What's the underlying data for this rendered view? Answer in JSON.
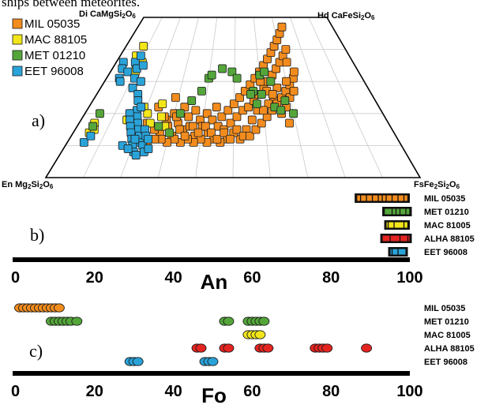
{
  "caption_fragment": "ships between meteorites.",
  "colors": {
    "MIL 05035": "#f28c1e",
    "MAC 88105": "#f2e61a",
    "MET 01210": "#54a63a",
    "EET 96008": "#2aa3d9",
    "ALHA 88105": "#e52420",
    "MAC 81005": "#f2e61a"
  },
  "chart_data": [
    {
      "panel": "a)",
      "type": "scatter",
      "subtype": "ternary pyroxene quadrilateral",
      "vertices": {
        "top_left": "Di CaMgSi2O6",
        "top_right": "Hd CaFeSi2O6",
        "bottom_left": "En Mg2Si2O6",
        "bottom_right": "FsFe2Si2O6"
      },
      "coordinates_note": "Wo: 0 at the base, 50 at the top edge; Fs: 0 at the En side, 100 at the Fs corner",
      "legend_position": "top-left",
      "series": [
        {
          "name": "MIL 05035",
          "points": [
            [
              22,
              17
            ],
            [
              24,
              22
            ],
            [
              27,
              14
            ],
            [
              28,
              18
            ],
            [
              29,
              25
            ],
            [
              30,
              20
            ],
            [
              31,
              13
            ],
            [
              32,
              17
            ],
            [
              33,
              22
            ],
            [
              34,
              15
            ],
            [
              35,
              19
            ],
            [
              36,
              16
            ],
            [
              37,
              21
            ],
            [
              38,
              13
            ],
            [
              39,
              18
            ],
            [
              40,
              16
            ],
            [
              41,
              20
            ],
            [
              42,
              14
            ],
            [
              43,
              18
            ],
            [
              44,
              22
            ],
            [
              45,
              16
            ],
            [
              46,
              19
            ],
            [
              47,
              15
            ],
            [
              48,
              21
            ],
            [
              49,
              17
            ],
            [
              50,
              23
            ],
            [
              51,
              19
            ],
            [
              52,
              25
            ],
            [
              53,
              21
            ],
            [
              54,
              27
            ],
            [
              55,
              22
            ],
            [
              56,
              29
            ],
            [
              57,
              24
            ],
            [
              58,
              31
            ],
            [
              59,
              26
            ],
            [
              60,
              33
            ],
            [
              61,
              28
            ],
            [
              62,
              35
            ],
            [
              63,
              30
            ],
            [
              64,
              37
            ],
            [
              65,
              32
            ],
            [
              66,
              39
            ],
            [
              67,
              34
            ],
            [
              68,
              41
            ],
            [
              69,
              36
            ],
            [
              70,
              43
            ],
            [
              71,
              38
            ],
            [
              72,
              45
            ],
            [
              73,
              40
            ],
            [
              74,
              47
            ],
            [
              60,
              30
            ],
            [
              62,
              27
            ],
            [
              64,
              24
            ],
            [
              66,
              20
            ],
            [
              68,
              17
            ],
            [
              58,
              21
            ],
            [
              56,
              18
            ],
            [
              54,
              15
            ],
            [
              52,
              12
            ],
            [
              50,
              14
            ],
            [
              48,
              12
            ],
            [
              46,
              11
            ],
            [
              44,
              12
            ],
            [
              42,
              11
            ],
            [
              40,
              12
            ],
            [
              38,
              11
            ],
            [
              36,
              12
            ],
            [
              34,
              11
            ],
            [
              32,
              12
            ],
            [
              30,
              11
            ],
            [
              28,
              12
            ],
            [
              26,
              12
            ],
            [
              24,
              11
            ],
            [
              22,
              12
            ],
            [
              20,
              12
            ],
            [
              25,
              15
            ],
            [
              27,
              19
            ],
            [
              29,
              16
            ],
            [
              31,
              19
            ],
            [
              33,
              15
            ],
            [
              35,
              13
            ],
            [
              37,
              16
            ],
            [
              39,
              14
            ],
            [
              41,
              16
            ],
            [
              43,
              14
            ],
            [
              45,
              12
            ],
            [
              47,
              14
            ],
            [
              49,
              12
            ],
            [
              51,
              15
            ],
            [
              53,
              13
            ],
            [
              55,
              13
            ],
            [
              57,
              15
            ],
            [
              59,
              17
            ],
            [
              61,
              19
            ],
            [
              63,
              21
            ],
            [
              65,
              23
            ],
            [
              67,
              25
            ],
            [
              69,
              27
            ],
            [
              71,
              29
            ],
            [
              73,
              31
            ],
            [
              72,
              36
            ],
            [
              70,
              30
            ],
            [
              66,
              28
            ],
            [
              64,
              26
            ],
            [
              62,
              23
            ],
            [
              60,
              21
            ],
            [
              68,
              22
            ],
            [
              70,
              25
            ],
            [
              72,
              27
            ],
            [
              74,
              33
            ]
          ]
        },
        {
          "name": "MAC 88105",
          "points": [
            [
              7,
              38
            ],
            [
              8,
              41
            ],
            [
              9,
              35
            ],
            [
              10,
              33
            ],
            [
              11,
              36
            ],
            [
              5,
              17
            ],
            [
              5,
              14
            ],
            [
              6,
              15
            ],
            [
              19,
              22
            ],
            [
              21,
              20
            ],
            [
              23,
              17
            ],
            [
              25,
              23
            ],
            [
              26,
              19
            ],
            [
              28,
              16
            ],
            [
              15,
              18
            ],
            [
              17,
              21
            ]
          ]
        },
        {
          "name": "MET 01210",
          "points": [
            [
              5,
              20
            ],
            [
              5,
              16
            ],
            [
              16,
              20
            ],
            [
              22,
              14
            ],
            [
              26,
              16
            ],
            [
              30,
              14
            ],
            [
              32,
              20
            ],
            [
              35,
              24
            ],
            [
              38,
              27
            ],
            [
              40,
              31
            ],
            [
              41,
              32
            ],
            [
              45,
              34
            ],
            [
              49,
              33
            ],
            [
              51,
              31
            ],
            [
              57,
              27
            ],
            [
              60,
              26
            ],
            [
              60,
              32
            ],
            [
              62,
              33
            ],
            [
              64,
              30
            ],
            [
              64,
              22
            ],
            [
              66,
              21
            ],
            [
              68,
              24
            ],
            [
              56,
              26
            ],
            [
              58,
              23
            ],
            [
              70,
              20
            ]
          ]
        },
        {
          "name": "EET 96008",
          "points": [
            [
              3,
              36
            ],
            [
              4,
              34
            ],
            [
              5,
              31
            ],
            [
              6,
              30
            ],
            [
              7,
              33
            ],
            [
              8,
              36
            ],
            [
              9,
              38
            ],
            [
              10,
              34
            ],
            [
              11,
              31
            ],
            [
              12,
              28
            ],
            [
              14,
              30
            ],
            [
              15,
              26
            ],
            [
              16,
              24
            ],
            [
              17,
              21
            ],
            [
              18,
              19
            ],
            [
              19,
              17
            ],
            [
              20,
              15
            ],
            [
              21,
              13
            ],
            [
              22,
              11
            ],
            [
              23,
              10
            ],
            [
              24,
              8
            ],
            [
              25,
              9
            ],
            [
              15,
              20
            ],
            [
              16,
              18
            ],
            [
              17,
              16
            ],
            [
              18,
              14
            ],
            [
              19,
              12
            ],
            [
              20,
              10
            ],
            [
              21,
              8
            ],
            [
              22,
              7
            ],
            [
              17,
              10
            ],
            [
              19,
              9
            ],
            [
              20,
              12
            ],
            [
              22,
              15
            ],
            [
              23,
              13
            ],
            [
              12,
              35
            ],
            [
              5,
              11
            ],
            [
              6,
              13
            ],
            [
              18,
              22
            ],
            [
              24,
              12
            ]
          ]
        }
      ]
    },
    {
      "panel": "b)",
      "type": "range-bars",
      "measure": "An",
      "xlabel": "An",
      "xlim": [
        0,
        100
      ],
      "x_ticks": [
        0,
        20,
        40,
        60,
        80,
        100
      ],
      "series": [
        {
          "name": "MIL 05035",
          "range": [
            86,
            100
          ],
          "color": "#f28c1e",
          "lines": [
            86.5,
            87.5,
            89,
            90.5,
            92,
            93,
            94,
            95.5,
            97,
            98.5,
            99.5
          ]
        },
        {
          "name": "MET 01210",
          "range": [
            93,
            100.5
          ],
          "color": "#54a63a",
          "lines": [
            93.5,
            95.5,
            96.5,
            97.5,
            99,
            100
          ]
        },
        {
          "name": "MAC 81005",
          "range": [
            93.5,
            100
          ],
          "color": "#f2e61a",
          "lines": [
            94.5,
            96,
            98.5,
            99.5
          ]
        },
        {
          "name": "ALHA 88105",
          "range": [
            92.5,
            100.5
          ],
          "color": "#e52420",
          "lines": [
            95,
            97.5,
            99.5
          ]
        },
        {
          "name": "EET 96008",
          "range": [
            94.5,
            99.5
          ],
          "color": "#2aa3d9",
          "lines": [
            95.5,
            97
          ]
        }
      ]
    },
    {
      "panel": "c)",
      "type": "scatter",
      "measure": "Fo",
      "xlabel": "Fo",
      "xlim": [
        0,
        100
      ],
      "x_ticks": [
        0,
        20,
        40,
        60,
        80,
        100
      ],
      "series": [
        {
          "name": "MIL 05035",
          "color": "#f28c1e",
          "values": [
            1,
            2,
            3,
            4,
            5,
            6,
            7,
            8,
            9,
            10,
            11
          ]
        },
        {
          "name": "MET 01210",
          "color": "#54a63a",
          "values": [
            9,
            10,
            11,
            12,
            13,
            14,
            15.5,
            53,
            54,
            59,
            60,
            61,
            62,
            63
          ]
        },
        {
          "name": "MAC 81005",
          "color": "#f2e61a",
          "values": [
            59,
            60,
            61,
            62
          ]
        },
        {
          "name": "ALHA 88105",
          "color": "#e52420",
          "values": [
            46,
            47,
            53,
            54,
            62,
            63,
            64,
            76,
            77,
            78,
            79,
            89
          ]
        },
        {
          "name": "EET 96008",
          "color": "#2aa3d9",
          "values": [
            29,
            30,
            31,
            48,
            49,
            50
          ]
        }
      ]
    }
  ]
}
